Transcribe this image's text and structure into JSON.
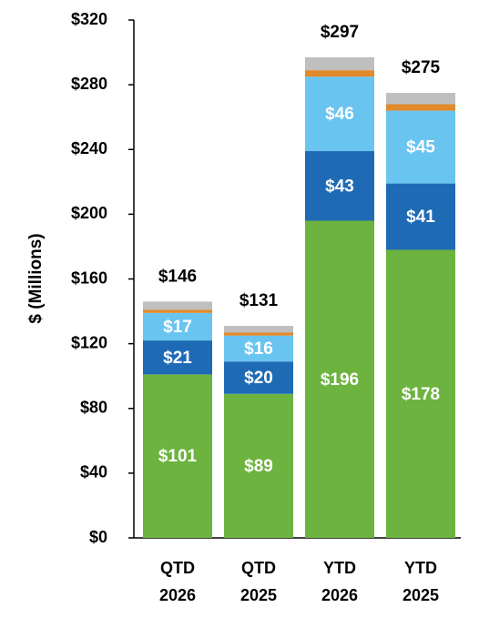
{
  "chart_data": {
    "type": "stacked-bar",
    "y_label": "$ (Millions)",
    "categories": [
      [
        "QTD",
        "2026"
      ],
      [
        "QTD",
        "2025"
      ],
      [
        "YTD",
        "2026"
      ],
      [
        "YTD",
        "2025"
      ]
    ],
    "series": [
      {
        "color": "#6cb33f",
        "values": [
          101,
          89,
          196,
          178
        ],
        "value_labels": [
          "$101",
          "$89",
          "$196",
          "$178"
        ]
      },
      {
        "color": "#1f6ab5",
        "values": [
          21,
          20,
          43,
          41
        ],
        "value_labels": [
          "$21",
          "$20",
          "$43",
          "$41"
        ]
      },
      {
        "color": "#6ac4f0",
        "values": [
          17,
          16,
          46,
          45
        ],
        "value_labels": [
          "$17",
          "$16",
          "$46",
          "$45"
        ]
      },
      {
        "color": "#e08a2c",
        "values": [
          2,
          2,
          4,
          4
        ]
      },
      {
        "color": "#bfbfbf",
        "values": [
          5,
          4,
          8,
          7
        ]
      }
    ],
    "totals": {
      "values": [
        146,
        131,
        297,
        275
      ],
      "value_labels": [
        "$146",
        "$131",
        "$297",
        "$275"
      ]
    },
    "ylim": [
      0,
      320
    ],
    "yticks": [
      {
        "value": 0,
        "label": "$0"
      },
      {
        "value": 40,
        "label": "$40"
      },
      {
        "value": 80,
        "label": "$80"
      },
      {
        "value": 120,
        "label": "$120"
      },
      {
        "value": 160,
        "label": "$160"
      },
      {
        "value": 200,
        "label": "$200"
      },
      {
        "value": 240,
        "label": "$240"
      },
      {
        "value": 280,
        "label": "$280"
      },
      {
        "value": 320,
        "label": "$320"
      }
    ]
  }
}
